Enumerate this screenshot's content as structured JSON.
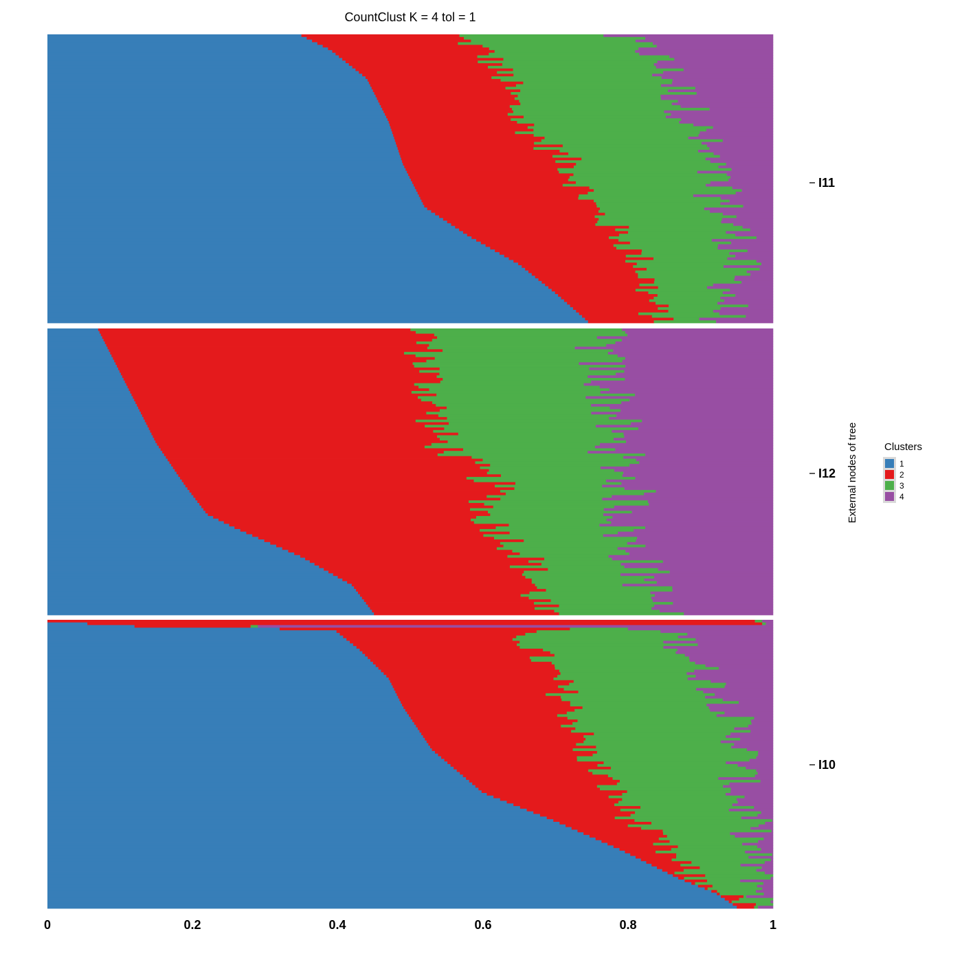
{
  "chart_data": {
    "type": "bar",
    "orientation": "horizontal-stacked",
    "title": "CountClust K =  4 tol =  1",
    "ylabel": "External nodes of tree",
    "xlim": [
      0,
      1
    ],
    "x_ticks": [
      "0",
      "0.2",
      "0.4",
      "0.6",
      "0.8",
      "1"
    ],
    "x_tick_values": [
      0,
      0.2,
      0.4,
      0.6,
      0.8,
      1
    ],
    "grid": false,
    "legend": {
      "title": "Clusters",
      "placement": "right",
      "entries": [
        {
          "label": "1",
          "color": "#377EB8"
        },
        {
          "label": "2",
          "color": "#E41A1C"
        },
        {
          "label": "3",
          "color": "#4DAF4A"
        },
        {
          "label": "4",
          "color": "#984EA3"
        }
      ]
    },
    "facets": [
      {
        "label": "I11",
        "rows": 110,
        "boundary_profile": {
          "t": [
            0.0,
            0.05,
            0.15,
            0.3,
            0.45,
            0.6,
            0.7,
            0.8,
            0.9,
            1.0
          ],
          "c1": [
            0.35,
            0.39,
            0.44,
            0.47,
            0.49,
            0.52,
            0.58,
            0.65,
            0.7,
            0.745
          ],
          "c2": [
            0.56,
            0.6,
            0.63,
            0.65,
            0.72,
            0.75,
            0.79,
            0.82,
            0.83,
            0.84
          ],
          "c3": [
            0.78,
            0.83,
            0.86,
            0.89,
            0.91,
            0.93,
            0.95,
            0.95,
            0.94,
            0.93
          ]
        },
        "jitter": {
          "c2": 0.025,
          "c3": 0.035
        }
      },
      {
        "label": "I12",
        "rows": 110,
        "boundary_profile": {
          "t": [
            0.0,
            0.1,
            0.25,
            0.4,
            0.55,
            0.65,
            0.7,
            0.8,
            0.9,
            1.0
          ],
          "c1": [
            0.07,
            0.09,
            0.12,
            0.15,
            0.19,
            0.22,
            0.26,
            0.35,
            0.42,
            0.45
          ],
          "c2": [
            0.52,
            0.52,
            0.53,
            0.54,
            0.62,
            0.6,
            0.62,
            0.66,
            0.67,
            0.68
          ],
          "c3": [
            0.76,
            0.76,
            0.78,
            0.78,
            0.8,
            0.8,
            0.79,
            0.81,
            0.83,
            0.84
          ]
        },
        "jitter": {
          "c2": 0.03,
          "c3": 0.04
        }
      },
      {
        "label": "I10",
        "rows": 110,
        "special_rows": [
          {
            "c1": 0.0,
            "c2": 0.975,
            "c3": 0.985
          },
          {
            "c1": 0.055,
            "c2": 0.985,
            "c3": 0.99
          },
          {
            "c1": 0.12,
            "c2": 0.28,
            "c3": 0.29
          },
          {
            "c1": 0.32,
            "c2": 0.72,
            "c3": 0.8
          }
        ],
        "boundary_profile": {
          "t": [
            0.0,
            0.1,
            0.2,
            0.3,
            0.45,
            0.6,
            0.7,
            0.8,
            0.9,
            0.95,
            1.0
          ],
          "c1": [
            0.38,
            0.43,
            0.47,
            0.49,
            0.53,
            0.6,
            0.7,
            0.79,
            0.87,
            0.92,
            0.95
          ],
          "c2": [
            0.64,
            0.67,
            0.7,
            0.72,
            0.74,
            0.78,
            0.81,
            0.85,
            0.89,
            0.93,
            0.96
          ],
          "c3": [
            0.86,
            0.88,
            0.91,
            0.94,
            0.96,
            0.95,
            0.97,
            0.97,
            0.98,
            0.985,
            0.99
          ]
        },
        "jitter": {
          "c2": 0.025,
          "c3": 0.03
        }
      }
    ]
  }
}
